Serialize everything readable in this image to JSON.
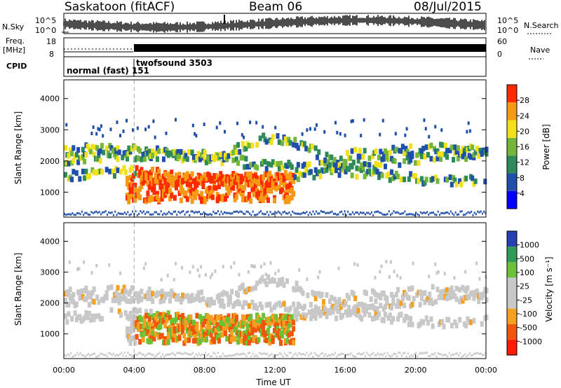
{
  "header": {
    "station": "Saskatoon (fitACF)",
    "beam": "Beam 06",
    "date": "08/Jul/2015"
  },
  "strip_labels": {
    "nsky": "N.Sky",
    "nsky_ticks": [
      "10^5",
      "10^0"
    ],
    "nsearch": "N.Search",
    "nsearch_ticks": [
      "10^5",
      "10^0"
    ],
    "freq_line1": "Freq.",
    "freq_line2": "[MHz]",
    "freq_ticks": [
      "18",
      "8"
    ],
    "nave": "Nave",
    "nave_ticks": [
      "60",
      "0"
    ],
    "cpid": "CPID"
  },
  "modes": [
    {
      "label": "normal (fast) 151",
      "start_hour": 0
    },
    {
      "label": "twofsound 3503",
      "start_hour": 4
    }
  ],
  "chart_data": [
    {
      "type": "heatmap",
      "name": "power",
      "ylabel": "Slant Range [km]",
      "xlabel": "",
      "xlim": [
        0,
        24
      ],
      "ylim": [
        200,
        4600
      ],
      "yticks": [
        "1000",
        "2000",
        "3000",
        "4000"
      ],
      "colorbar_label": "Power [dB]",
      "colorbar_ticks": [
        "28",
        "24",
        "20",
        "16",
        "12",
        "8",
        "4"
      ],
      "colorbar_colors": [
        "#0000ff",
        "#1f4faa",
        "#2f8a5a",
        "#74b63a",
        "#f1e01a",
        "#f59a14",
        "#ff2a00"
      ]
    },
    {
      "type": "heatmap",
      "name": "velocity",
      "ylabel": "Slant Range [km]",
      "xlabel": "Time UT",
      "xlim": [
        0,
        24
      ],
      "ylim": [
        200,
        4600
      ],
      "yticks": [
        "1000",
        "2000",
        "3000",
        "4000"
      ],
      "xticks": [
        "00:00",
        "04:00",
        "08:00",
        "12:00",
        "16:00",
        "20:00",
        "00:00"
      ],
      "colorbar_label": "Velocity [m s⁻¹]",
      "colorbar_ticks": [
        "1000",
        "500",
        "100",
        "25",
        "-25",
        "-100",
        "-500",
        "-1000"
      ],
      "colorbar_colors": [
        "#ff1a00",
        "#f0550a",
        "#f5a020",
        "#c8c8c8",
        "#c8c8c8",
        "#6ac234",
        "#2e9a55",
        "#2540b0"
      ]
    }
  ]
}
